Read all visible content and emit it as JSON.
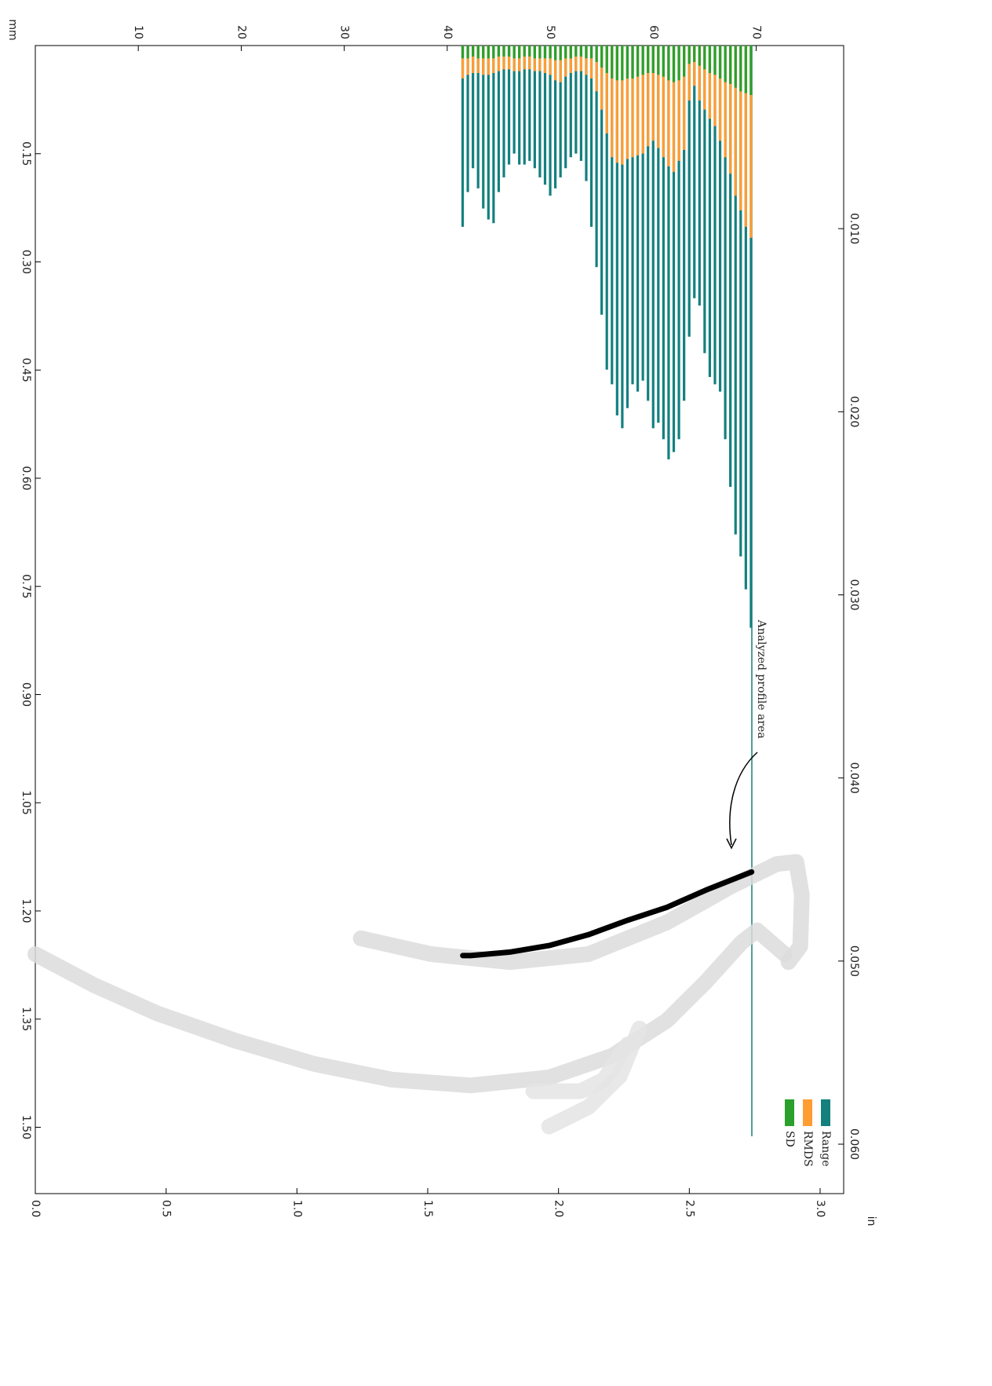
{
  "chart_data": {
    "type": "bar",
    "x_label": "in",
    "x2_label": "mm",
    "xlim": [
      0,
      3.09
    ],
    "xticks": [
      {
        "value": 0,
        "label": "0.0"
      },
      0.5,
      {
        "value": 1,
        "label": "1.0"
      },
      1.5,
      {
        "value": 2,
        "label": "2.0"
      },
      2.5,
      {
        "value": 3,
        "label": "3.0"
      }
    ],
    "x2lim": [
      0,
      78.5
    ],
    "x2ticks": [
      10,
      20,
      30,
      40,
      50,
      60,
      70
    ],
    "ylim": [
      0,
      1.592
    ],
    "yticks": [
      0.15,
      {
        "value": 0.3,
        "label": "0.30"
      },
      0.45,
      {
        "value": 0.6,
        "label": "0.60"
      },
      0.75,
      {
        "value": 0.9,
        "label": "0.90"
      },
      1.05,
      {
        "value": 1.2,
        "label": "1.20"
      },
      1.35,
      {
        "value": 1.5,
        "label": "1.50"
      }
    ],
    "y2lim": [
      0,
      0.0627
    ],
    "y2ticks": [
      {
        "value": 0.01,
        "label": "0.010"
      },
      {
        "value": 0.02,
        "label": "0.020"
      },
      {
        "value": 0.03,
        "label": "0.030"
      },
      {
        "value": 0.04,
        "label": "0.040"
      },
      {
        "value": 0.05,
        "label": "0.050"
      },
      {
        "value": 0.06,
        "label": "0.060"
      }
    ],
    "x": [
      41.5,
      42,
      42.5,
      43,
      43.5,
      44,
      44.5,
      45,
      45.5,
      46,
      46.5,
      47,
      47.5,
      48,
      48.5,
      49,
      49.5,
      50,
      50.5,
      51,
      51.5,
      52,
      52.5,
      53,
      53.5,
      54,
      54.5,
      55,
      55.5,
      56,
      56.5,
      57,
      57.5,
      58,
      58.5,
      59,
      59.5,
      60,
      60.5,
      61,
      61.5,
      62,
      62.5,
      63,
      63.5,
      64,
      64.5,
      65,
      65.5,
      66,
      66.5,
      67,
      67.5,
      68,
      68.5,
      69,
      69.5
    ],
    "series": [
      {
        "name": "Range",
        "color": "#13807e",
        "axis": "y2",
        "values": [
          0.0099,
          0.008,
          0.0067,
          0.0078,
          0.0089,
          0.0095,
          0.0097,
          0.008,
          0.0072,
          0.0065,
          0.0059,
          0.0065,
          0.0065,
          0.0063,
          0.0067,
          0.0072,
          0.0076,
          0.0082,
          0.0078,
          0.0072,
          0.0067,
          0.0061,
          0.0059,
          0.0063,
          0.0074,
          0.0099,
          0.0121,
          0.0147,
          0.0177,
          0.0185,
          0.0202,
          0.0209,
          0.0198,
          0.0185,
          0.0189,
          0.0183,
          0.0194,
          0.0209,
          0.0206,
          0.0215,
          0.0226,
          0.0222,
          0.0215,
          0.0194,
          0.0159,
          0.0138,
          0.0142,
          0.0168,
          0.0181,
          0.0185,
          0.0189,
          0.0215,
          0.0241,
          0.0267,
          0.0279,
          0.0297,
          0.0318
        ]
      },
      {
        "name": "RMDS",
        "color": "#ff9d33",
        "axis": "y2",
        "values": [
          0.0018,
          0.0016,
          0.0015,
          0.0015,
          0.0016,
          0.0016,
          0.0015,
          0.0014,
          0.0013,
          0.0013,
          0.0014,
          0.0014,
          0.0013,
          0.0013,
          0.0014,
          0.0014,
          0.0015,
          0.0016,
          0.0019,
          0.002,
          0.0017,
          0.0015,
          0.0014,
          0.0014,
          0.0016,
          0.0018,
          0.0025,
          0.0035,
          0.0048,
          0.0061,
          0.0064,
          0.0065,
          0.0062,
          0.0061,
          0.006,
          0.0059,
          0.0055,
          0.0052,
          0.0056,
          0.0061,
          0.0066,
          0.0069,
          0.0063,
          0.0057,
          0.003,
          0.0022,
          0.003,
          0.0035,
          0.004,
          0.0044,
          0.0052,
          0.0061,
          0.007,
          0.0082,
          0.009,
          0.0099,
          0.0105
        ]
      },
      {
        "name": "SD",
        "color": "#2ca02c",
        "axis": "y2",
        "values": [
          0.0007,
          0.0007,
          0.0006,
          0.0007,
          0.0007,
          0.0007,
          0.0007,
          0.0006,
          0.0006,
          0.0006,
          0.0007,
          0.0007,
          0.0006,
          0.0006,
          0.0007,
          0.0007,
          0.0007,
          0.0007,
          0.0008,
          0.0008,
          0.0007,
          0.0007,
          0.0006,
          0.0006,
          0.0007,
          0.0007,
          0.0009,
          0.0012,
          0.0015,
          0.0018,
          0.0019,
          0.0019,
          0.0018,
          0.0018,
          0.0017,
          0.0016,
          0.0015,
          0.0015,
          0.0016,
          0.0017,
          0.0019,
          0.002,
          0.0019,
          0.0017,
          0.001,
          0.0009,
          0.0011,
          0.0013,
          0.0015,
          0.0016,
          0.0018,
          0.002,
          0.0021,
          0.0023,
          0.0025,
          0.0026,
          0.0027
        ]
      }
    ],
    "profile_lines": [
      {
        "color": "#dcdcdc",
        "x": [
          1.244,
          1.514,
          1.814,
          2.114,
          2.414,
          2.654,
          2.834,
          2.909,
          2.93,
          2.924,
          2.879
        ],
        "y": [
          1.238,
          1.26,
          1.271,
          1.26,
          1.216,
          1.167,
          1.135,
          1.132,
          1.178,
          1.249,
          1.271
        ]
      },
      {
        "color": "#dcdcdc",
        "x": [
          2.864,
          2.759,
          2.699,
          2.564,
          2.414,
          2.204,
          1.964,
          1.664,
          1.364,
          1.064,
          0.765,
          0.465,
          0.225,
          0
        ],
        "y": [
          1.26,
          1.227,
          1.244,
          1.298,
          1.352,
          1.401,
          1.431,
          1.442,
          1.434,
          1.412,
          1.38,
          1.342,
          1.303,
          1.26
        ]
      },
      {
        "color": "#e4e4e4",
        "x": [
          2.309,
          2.234,
          2.114,
          1.964
        ],
        "y": [
          1.363,
          1.429,
          1.472,
          1.499
        ]
      },
      {
        "color": "#e4e4e4",
        "x": [
          2.264,
          2.174,
          2.084,
          1.904
        ],
        "y": [
          1.385,
          1.434,
          1.45,
          1.45
        ]
      },
      {
        "color": "#000000",
        "x": [
          2.738,
          2.564,
          2.414,
          2.264,
          2.114,
          1.964,
          1.814,
          1.664,
          1.634
        ],
        "y": [
          1.146,
          1.171,
          1.195,
          1.213,
          1.233,
          1.248,
          1.257,
          1.262,
          1.262
        ]
      }
    ],
    "annotation": "Analyzed profile area",
    "legend": "bottom-right"
  }
}
